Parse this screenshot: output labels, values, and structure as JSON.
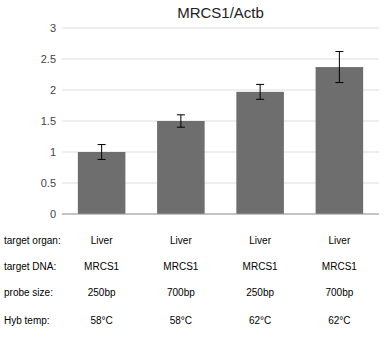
{
  "chart_data": {
    "type": "bar",
    "title": "MRCS1/Actb",
    "categories": [
      null,
      null,
      null,
      null
    ],
    "values": [
      1.0,
      1.5,
      1.97,
      2.37
    ],
    "errors": [
      0.12,
      0.1,
      0.12,
      0.25
    ],
    "color": "#6e6e6e",
    "ylim": [
      0,
      3.0
    ],
    "yticks": [
      0,
      0.5,
      1,
      1.5,
      2,
      2.5,
      3
    ],
    "grid": true,
    "table": {
      "rows": [
        "target organ:",
        "target DNA:",
        "probe size:",
        "Hyb temp:"
      ],
      "columns": [
        [
          "Liver",
          "MRCS1",
          "250bp",
          "58°C"
        ],
        [
          "Liver",
          "MRCS1",
          "700bp",
          "58°C"
        ],
        [
          "Liver",
          "MRCS1",
          "250bp",
          "62°C"
        ],
        [
          "Liver",
          "MRCS1",
          "700bp",
          "62°C"
        ]
      ]
    }
  }
}
